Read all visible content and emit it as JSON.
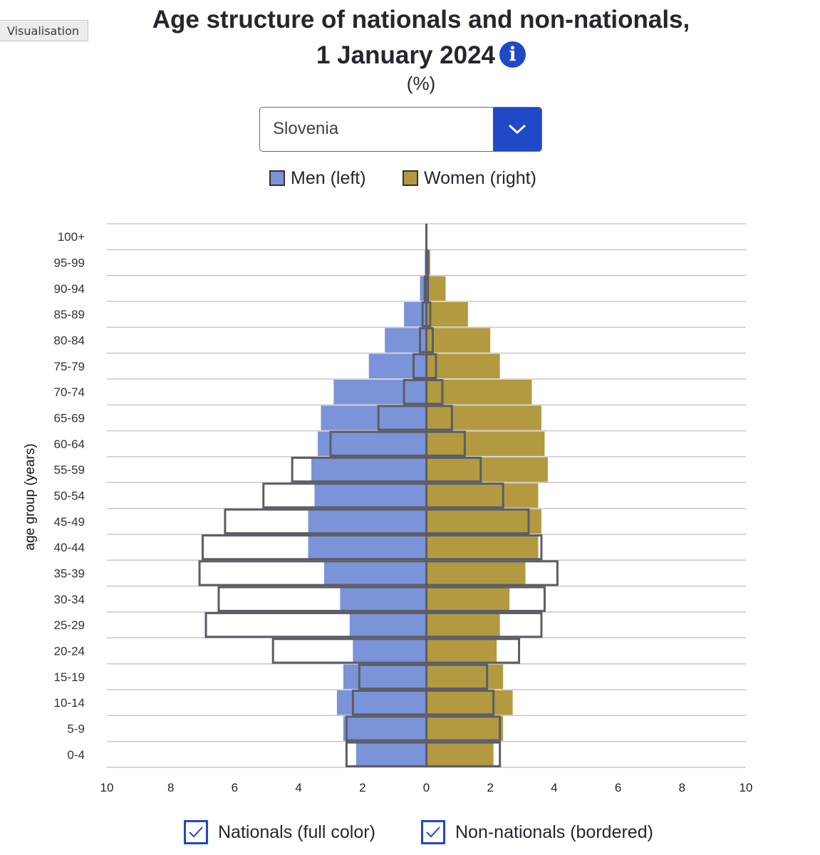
{
  "tab_label": "Visualisation",
  "title_line1": "Age structure of nationals and non-nationals,",
  "title_line2": "1 January 2024",
  "info_icon_glyph": "i",
  "unit": "(%)",
  "country_select": {
    "value": "Slovenia"
  },
  "legend": {
    "men": "Men (left)",
    "women": "Women (right)"
  },
  "colors": {
    "men": "#7b93d8",
    "women": "#b39a40",
    "outline": "#5b5d66",
    "accent": "#1f49c7",
    "grid": "#c8c8c8"
  },
  "toggles": {
    "nationals": {
      "label": "Nationals (full color)",
      "checked": true
    },
    "non_nationals": {
      "label": "Non-nationals (bordered)",
      "checked": true
    }
  },
  "chart_data": {
    "type": "bar",
    "orientation": "horizontal-population-pyramid",
    "title": "Age structure of nationals and non-nationals, 1 January 2024",
    "unit": "%",
    "ylabel": "age group (years)",
    "xlabel": "",
    "xlim": [
      -10,
      10
    ],
    "x_ticks": [
      -10,
      -8,
      -6,
      -4,
      -2,
      0,
      2,
      4,
      6,
      8,
      10
    ],
    "x_tick_labels": [
      "10",
      "8",
      "6",
      "4",
      "2",
      "0",
      "2",
      "4",
      "6",
      "8",
      "10"
    ],
    "categories": [
      "100+",
      "95-99",
      "90-94",
      "85-89",
      "80-84",
      "75-79",
      "70-74",
      "65-69",
      "60-64",
      "55-59",
      "50-54",
      "45-49",
      "40-44",
      "35-39",
      "30-34",
      "25-29",
      "20-24",
      "15-19",
      "10-14",
      "5-9",
      "0-4"
    ],
    "series": [
      {
        "name": "Nationals men",
        "side": "left",
        "style": "filled",
        "values": [
          0.0,
          0.05,
          0.2,
          0.7,
          1.3,
          1.8,
          2.9,
          3.3,
          3.4,
          3.6,
          3.5,
          3.7,
          3.7,
          3.2,
          2.7,
          2.4,
          2.3,
          2.6,
          2.8,
          2.6,
          2.2
        ]
      },
      {
        "name": "Nationals women",
        "side": "right",
        "style": "filled",
        "values": [
          0.02,
          0.12,
          0.6,
          1.3,
          2.0,
          2.3,
          3.3,
          3.6,
          3.7,
          3.8,
          3.5,
          3.6,
          3.5,
          3.1,
          2.6,
          2.3,
          2.2,
          2.4,
          2.7,
          2.4,
          2.1
        ]
      },
      {
        "name": "Non-nationals men",
        "side": "left",
        "style": "bordered",
        "values": [
          0.0,
          0.0,
          0.05,
          0.12,
          0.2,
          0.4,
          0.7,
          1.5,
          3.0,
          4.2,
          5.1,
          6.3,
          7.0,
          7.1,
          6.5,
          6.9,
          4.8,
          2.1,
          2.3,
          2.5,
          2.5
        ]
      },
      {
        "name": "Non-nationals women",
        "side": "right",
        "style": "bordered",
        "values": [
          0.0,
          0.05,
          0.05,
          0.12,
          0.2,
          0.3,
          0.5,
          0.8,
          1.2,
          1.7,
          2.4,
          3.2,
          3.6,
          4.1,
          3.7,
          3.6,
          2.9,
          1.9,
          2.1,
          2.3,
          2.3
        ]
      }
    ]
  }
}
